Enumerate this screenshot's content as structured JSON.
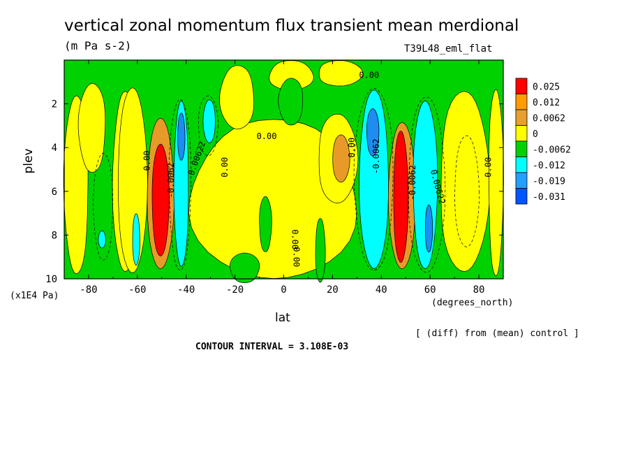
{
  "chart_data": {
    "type": "heatmap",
    "title": "vertical zonal momentum flux transient mean merdional",
    "subtitle": "(m Pa s-2)",
    "run_name": "T39L48_eml_flat",
    "xlabel": "lat",
    "ylabel": "plev",
    "x_units": "(degrees_north)",
    "y_units": "(x1E4 Pa)",
    "note": "[ (diff) from (mean) control ]",
    "contour_interval_text": "CONTOUR INTERVAL = 3.108E-03",
    "xlim": [
      -90,
      90
    ],
    "ylim": [
      10,
      0
    ],
    "x_ticks": [
      "-80",
      "-60",
      "-40",
      "-20",
      "0",
      "20",
      "40",
      "60",
      "80"
    ],
    "x_tick_values": [
      -80,
      -60,
      -40,
      -20,
      0,
      20,
      40,
      60,
      80
    ],
    "y_ticks": [
      "2",
      "4",
      "6",
      "8",
      "10"
    ],
    "y_tick_values": [
      2,
      4,
      6,
      8,
      10
    ],
    "colorbar": {
      "labels": [
        "0.025",
        "0.012",
        "0.0062",
        "0",
        "-0.0062",
        "-0.012",
        "-0.019",
        "-0.031"
      ],
      "colors": [
        "#ff0000",
        "#ff9d00",
        "#e8a030",
        "#ffff00",
        "#00d200",
        "#00ffff",
        "#22a0ff",
        "#0055ff"
      ]
    },
    "colors": {
      "red": "#ff0000",
      "orange": "#e89a28",
      "yellow": "#ffff00",
      "green": "#00d200",
      "cyan": "#00ffff",
      "blue": "#1e8cf0",
      "darkblue": "#0055ff"
    },
    "regions": [
      {
        "name": "sh-positive-band",
        "level": "yellow",
        "lat": [
          -68,
          -56
        ],
        "plev": [
          1.2,
          9.8
        ]
      },
      {
        "name": "sh-positive-band-orange",
        "level": "orange",
        "lat": [
          -56,
          -45
        ],
        "plev": [
          2.6,
          9.6
        ]
      },
      {
        "name": "sh-positive-core",
        "level": "red",
        "lat": [
          -54,
          -47
        ],
        "plev": [
          3.8,
          9.0
        ]
      },
      {
        "name": "sh-negative-band",
        "level": "cyan",
        "lat": [
          -45,
          -39
        ],
        "plev": [
          1.8,
          9.5
        ]
      },
      {
        "name": "sh-negative-core",
        "level": "blue",
        "lat": [
          -43.5,
          -40.5
        ],
        "plev": [
          2.4,
          4.6
        ]
      },
      {
        "name": "sh-negative-band-2",
        "level": "cyan",
        "lat": [
          -33,
          -28
        ],
        "plev": [
          1.8,
          3.8
        ]
      },
      {
        "name": "sh-negative-patch",
        "level": "cyan",
        "lat": [
          -62,
          -59
        ],
        "plev": [
          7.0,
          9.4
        ]
      },
      {
        "name": "sh-negative-patch-2",
        "level": "cyan",
        "lat": [
          -76,
          -73
        ],
        "plev": [
          7.8,
          8.6
        ]
      },
      {
        "name": "nh-positive-band",
        "level": "orange",
        "lat": [
          20,
          27
        ],
        "plev": [
          3.4,
          5.6
        ]
      },
      {
        "name": "nh-negative-band",
        "level": "cyan",
        "lat": [
          31,
          43
        ],
        "plev": [
          1.3,
          9.6
        ]
      },
      {
        "name": "nh-negative-core",
        "level": "blue",
        "lat": [
          34,
          39
        ],
        "plev": [
          2.2,
          4.4
        ]
      },
      {
        "name": "nh-positive-band-2",
        "level": "orange",
        "lat": [
          43,
          54
        ],
        "plev": [
          2.8,
          9.6
        ]
      },
      {
        "name": "nh-positive-core",
        "level": "red",
        "lat": [
          45,
          51
        ],
        "plev": [
          3.2,
          9.3
        ]
      },
      {
        "name": "nh-negative-band-2",
        "level": "cyan",
        "lat": [
          53,
          63
        ],
        "plev": [
          1.8,
          9.6
        ]
      },
      {
        "name": "nh-negative-core-2",
        "level": "blue",
        "lat": [
          58,
          61
        ],
        "plev": [
          6.6,
          8.8
        ]
      }
    ],
    "contour_labels": [
      {
        "text": "0.00",
        "lat": 35,
        "plev": 0.7,
        "angle": 0
      },
      {
        "text": "0.00",
        "lat": -7,
        "plev": 3.5,
        "angle": 0
      },
      {
        "text": "0.00",
        "lat": -56,
        "plev": 4.6,
        "angle": -90
      },
      {
        "text": "0.00",
        "lat": -24,
        "plev": 4.9,
        "angle": -90
      },
      {
        "text": "0.00",
        "lat": 28,
        "plev": 4.0,
        "angle": -90
      },
      {
        "text": "0.00",
        "lat": 84,
        "plev": 4.9,
        "angle": -90
      },
      {
        "text": "0.00",
        "lat": 4.5,
        "plev": 8.2,
        "angle": 90
      },
      {
        "text": "0.00",
        "lat": 5,
        "plev": 9.0,
        "angle": 90
      },
      {
        "text": "0.00622",
        "lat": -35.5,
        "plev": 4.5,
        "angle": -70
      },
      {
        "text": "0.00622",
        "lat": 63,
        "plev": 5.8,
        "angle": 75
      },
      {
        "text": "-0.0062",
        "lat": -46,
        "plev": 5.5,
        "angle": -90
      },
      {
        "text": "-0.0062",
        "lat": 38,
        "plev": 4.4,
        "angle": -90
      },
      {
        "text": "-0.0062",
        "lat": 53,
        "plev": 5.6,
        "angle": -90
      }
    ]
  }
}
